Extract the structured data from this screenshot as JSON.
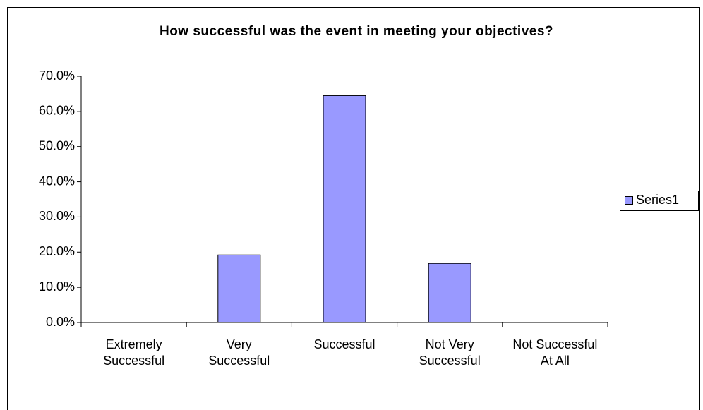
{
  "chart_data": {
    "type": "bar",
    "title": "How successful was the event in meeting your objectives?",
    "categories": [
      "Extremely Successful",
      "Very Successful",
      "Successful",
      "Not Very Successful",
      "Not Successful At All"
    ],
    "series": [
      {
        "name": "Series1",
        "color": "#9999ff",
        "values": [
          0,
          19.2,
          64.5,
          16.8,
          0
        ]
      }
    ],
    "ylim": [
      0,
      70
    ],
    "yticks": [
      {
        "value": 0,
        "label": "0.0%"
      },
      {
        "value": 10,
        "label": "10.0%"
      },
      {
        "value": 20,
        "label": "20.0%"
      },
      {
        "value": 30,
        "label": "30.0%"
      },
      {
        "value": 40,
        "label": "40.0%"
      },
      {
        "value": 50,
        "label": "50.0%"
      },
      {
        "value": 60,
        "label": "60.0%"
      },
      {
        "value": 70,
        "label": "70.0%"
      }
    ],
    "grid": false,
    "legend": "right"
  }
}
